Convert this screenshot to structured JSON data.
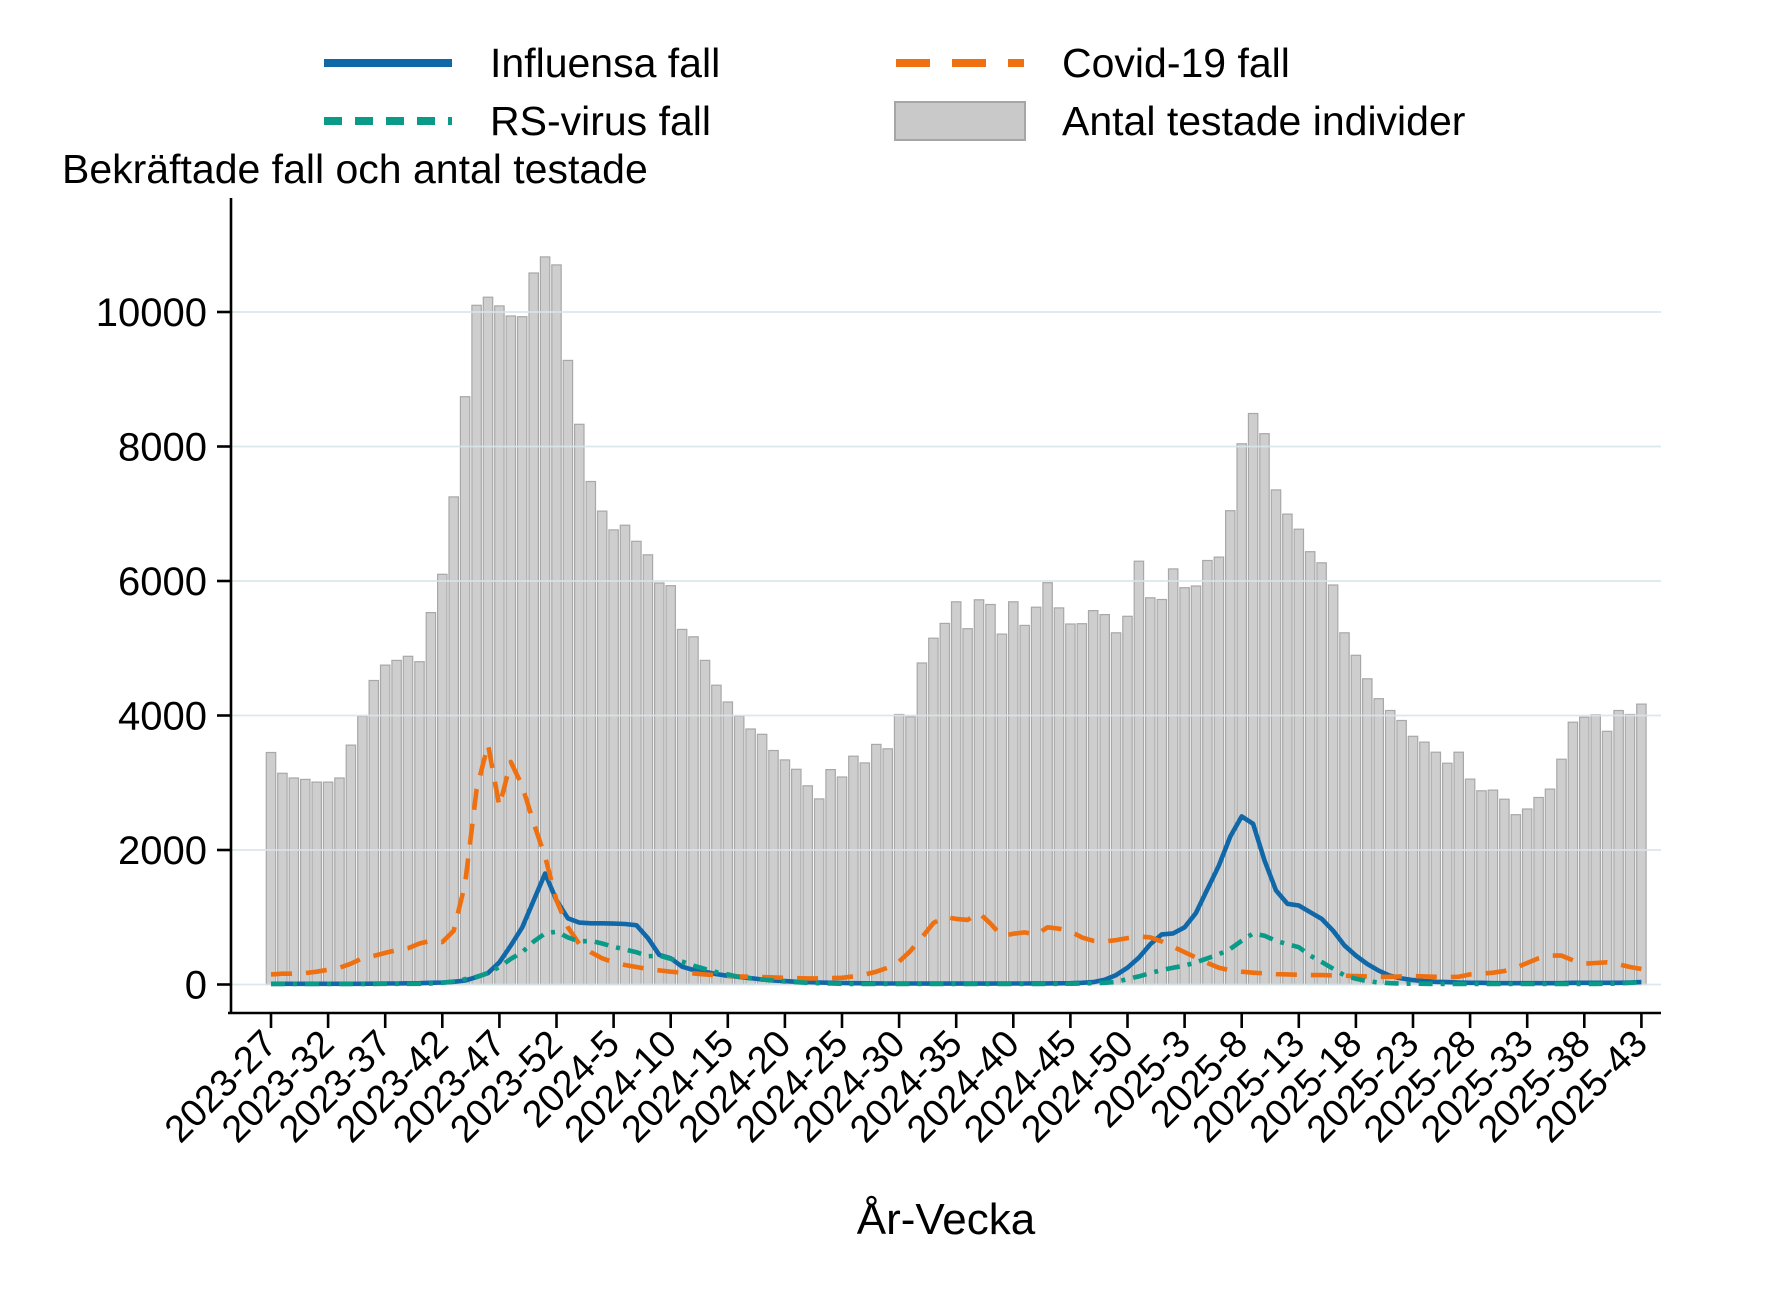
{
  "title": "Bekräftade fall och antal testade",
  "xlabel": "År-Vecka",
  "colors": {
    "influenza": "#1168a8",
    "covid": "#ee7011",
    "rsv": "#0a9a88",
    "bar_fill": "#cecece",
    "bar_border": "#a8a8a8",
    "grid": "#d7e6ea",
    "axis": "#000000"
  },
  "chart_data": {
    "type": "bar",
    "title": "Bekräftade fall och antal testade",
    "xlabel": "År-Vecka",
    "ylim": [
      0,
      11000
    ],
    "yticks": [
      0,
      2000,
      4000,
      6000,
      8000,
      10000
    ],
    "grid": true,
    "legend_position": "top",
    "xtick_every": 5,
    "xtick_labels": [
      "2023-27",
      "2023-32",
      "2023-37",
      "2023-42",
      "2023-47",
      "2023-52",
      "2024-5",
      "2024-10",
      "2024-15",
      "2024-20",
      "2024-25",
      "2024-30",
      "2024-35",
      "2024-40",
      "2024-45",
      "2024-50",
      "2025-3",
      "2025-8",
      "2025-13",
      "2025-18",
      "2025-23",
      "2025-28",
      "2025-33",
      "2025-38",
      "2025-43"
    ],
    "categories": [
      "2023-27",
      "2023-28",
      "2023-29",
      "2023-30",
      "2023-31",
      "2023-32",
      "2023-33",
      "2023-34",
      "2023-35",
      "2023-36",
      "2023-37",
      "2023-38",
      "2023-39",
      "2023-40",
      "2023-41",
      "2023-42",
      "2023-43",
      "2023-44",
      "2023-45",
      "2023-46",
      "2023-47",
      "2023-48",
      "2023-49",
      "2023-50",
      "2023-51",
      "2023-52",
      "2024-1",
      "2024-2",
      "2024-3",
      "2024-4",
      "2024-5",
      "2024-6",
      "2024-7",
      "2024-8",
      "2024-9",
      "2024-10",
      "2024-11",
      "2024-12",
      "2024-13",
      "2024-14",
      "2024-15",
      "2024-16",
      "2024-17",
      "2024-18",
      "2024-19",
      "2024-20",
      "2024-21",
      "2024-22",
      "2024-23",
      "2024-24",
      "2024-25",
      "2024-26",
      "2024-27",
      "2024-28",
      "2024-29",
      "2024-30",
      "2024-31",
      "2024-32",
      "2024-33",
      "2024-34",
      "2024-35",
      "2024-36",
      "2024-37",
      "2024-38",
      "2024-39",
      "2024-40",
      "2024-41",
      "2024-42",
      "2024-43",
      "2024-44",
      "2024-45",
      "2024-46",
      "2024-47",
      "2024-48",
      "2024-49",
      "2024-50",
      "2024-51",
      "2024-52",
      "2025-1",
      "2025-2",
      "2025-3",
      "2025-4",
      "2025-5",
      "2025-6",
      "2025-7",
      "2025-8",
      "2025-9",
      "2025-10",
      "2025-11",
      "2025-12",
      "2025-13",
      "2025-14",
      "2025-15",
      "2025-16",
      "2025-17",
      "2025-18",
      "2025-19",
      "2025-20",
      "2025-21",
      "2025-22",
      "2025-23",
      "2025-24",
      "2025-25",
      "2025-26",
      "2025-27",
      "2025-28",
      "2025-29",
      "2025-30",
      "2025-31",
      "2025-32",
      "2025-33",
      "2025-34",
      "2025-35",
      "2025-36",
      "2025-37",
      "2025-38",
      "2025-39",
      "2025-40",
      "2025-41",
      "2025-42",
      "2025-43"
    ],
    "series": [
      {
        "name": "Influensa fall",
        "type": "line",
        "style": "solid",
        "color": "#1168a8",
        "values": [
          10,
          10,
          10,
          10,
          10,
          10,
          10,
          10,
          10,
          12,
          15,
          15,
          18,
          20,
          25,
          30,
          40,
          60,
          110,
          170,
          330,
          580,
          850,
          1250,
          1650,
          1250,
          985,
          920,
          910,
          910,
          905,
          900,
          880,
          690,
          440,
          390,
          265,
          215,
          190,
          155,
          130,
          115,
          95,
          75,
          60,
          50,
          40,
          35,
          30,
          25,
          22,
          20,
          18,
          16,
          15,
          15,
          15,
          14,
          14,
          14,
          14,
          14,
          14,
          14,
          15,
          15,
          15,
          16,
          16,
          18,
          20,
          25,
          35,
          70,
          140,
          250,
          400,
          600,
          745,
          760,
          850,
          1065,
          1420,
          1770,
          2200,
          2500,
          2390,
          1845,
          1400,
          1200,
          1175,
          1075,
          975,
          800,
          580,
          430,
          305,
          205,
          130,
          90,
          65,
          50,
          40,
          35,
          30,
          25,
          25,
          20,
          20,
          20,
          20,
          20,
          20,
          20,
          25,
          25,
          25,
          25,
          25,
          30,
          35
        ]
      },
      {
        "name": "Covid-19 fall",
        "type": "line",
        "style": "long-dash",
        "color": "#ee7011",
        "values": [
          150,
          160,
          160,
          170,
          190,
          220,
          250,
          310,
          390,
          425,
          470,
          510,
          540,
          610,
          650,
          630,
          800,
          1500,
          2900,
          3570,
          2650,
          3310,
          2950,
          2400,
          1900,
          1250,
          850,
          600,
          480,
          390,
          330,
          290,
          260,
          230,
          210,
          190,
          175,
          165,
          150,
          140,
          130,
          120,
          115,
          110,
          105,
          100,
          95,
          90,
          90,
          95,
          100,
          120,
          150,
          190,
          250,
          340,
          500,
          700,
          915,
          1005,
          975,
          960,
          1065,
          905,
          720,
          755,
          775,
          740,
          850,
          830,
          790,
          700,
          650,
          640,
          660,
          690,
          715,
          700,
          640,
          560,
          480,
          400,
          320,
          250,
          210,
          190,
          175,
          165,
          155,
          150,
          145,
          140,
          140,
          135,
          130,
          125,
          120,
          115,
          115,
          120,
          125,
          120,
          115,
          110,
          115,
          150,
          160,
          175,
          200,
          250,
          320,
          390,
          430,
          430,
          360,
          310,
          320,
          330,
          300,
          260,
          230
        ]
      },
      {
        "name": "RS-virus fall",
        "type": "line",
        "style": "dash-dot",
        "color": "#0a9a88",
        "values": [
          8,
          8,
          8,
          8,
          8,
          8,
          8,
          8,
          8,
          8,
          10,
          10,
          10,
          10,
          15,
          25,
          45,
          80,
          115,
          170,
          260,
          380,
          480,
          640,
          760,
          785,
          700,
          640,
          650,
          610,
          560,
          520,
          480,
          420,
          430,
          380,
          340,
          280,
          230,
          185,
          150,
          110,
          90,
          75,
          60,
          45,
          35,
          25,
          20,
          15,
          10,
          8,
          8,
          8,
          8,
          8,
          8,
          8,
          8,
          8,
          8,
          8,
          8,
          8,
          8,
          8,
          8,
          8,
          8,
          10,
          12,
          15,
          20,
          25,
          40,
          80,
          120,
          170,
          215,
          250,
          280,
          330,
          390,
          450,
          530,
          650,
          760,
          725,
          650,
          600,
          555,
          430,
          335,
          235,
          135,
          85,
          50,
          30,
          20,
          15,
          12,
          10,
          8,
          8,
          8,
          8,
          8,
          8,
          8,
          8,
          8,
          8,
          8,
          8,
          8,
          8,
          8,
          10,
          15,
          25,
          35
        ]
      },
      {
        "name": "Antal testade individer",
        "type": "bar",
        "color": "#cecece",
        "values": [
          3450,
          3140,
          3070,
          3050,
          3010,
          3010,
          3070,
          3560,
          3990,
          4520,
          4750,
          4820,
          4880,
          4800,
          5530,
          6100,
          7250,
          8740,
          10100,
          10220,
          10090,
          9940,
          9930,
          10580,
          10820,
          10700,
          9280,
          8330,
          7480,
          7040,
          6760,
          6830,
          6590,
          6390,
          5970,
          5930,
          5280,
          5170,
          4820,
          4450,
          4200,
          3990,
          3800,
          3720,
          3480,
          3340,
          3200,
          2955,
          2760,
          3195,
          3085,
          3395,
          3295,
          3570,
          3505,
          4015,
          3980,
          4780,
          5150,
          5370,
          5690,
          5290,
          5720,
          5650,
          5210,
          5690,
          5340,
          5610,
          5975,
          5600,
          5360,
          5365,
          5560,
          5500,
          5230,
          5475,
          6295,
          5750,
          5725,
          6180,
          5900,
          5925,
          6305,
          6355,
          7045,
          8040,
          8490,
          8190,
          7355,
          6995,
          6770,
          6435,
          6270,
          5940,
          5230,
          4895,
          4545,
          4250,
          4075,
          3925,
          3690,
          3605,
          3455,
          3290,
          3455,
          3055,
          2880,
          2890,
          2755,
          2525,
          2610,
          2780,
          2905,
          3350,
          3900,
          3975,
          4010,
          3765,
          4075,
          4015,
          4170
        ]
      }
    ]
  }
}
